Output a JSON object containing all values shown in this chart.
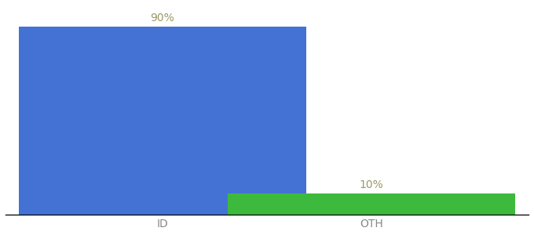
{
  "categories": [
    "ID",
    "OTH"
  ],
  "values": [
    90,
    10
  ],
  "bar_colors": [
    "#4472d4",
    "#3dba3d"
  ],
  "bar_labels": [
    "90%",
    "10%"
  ],
  "background_color": "#ffffff",
  "ylim": [
    0,
    100
  ],
  "label_fontsize": 10,
  "tick_fontsize": 10,
  "label_color": "#999966",
  "tick_color": "#888888",
  "bar_width": 0.55,
  "x_positions": [
    0.3,
    0.7
  ],
  "xlim": [
    0.0,
    1.0
  ]
}
